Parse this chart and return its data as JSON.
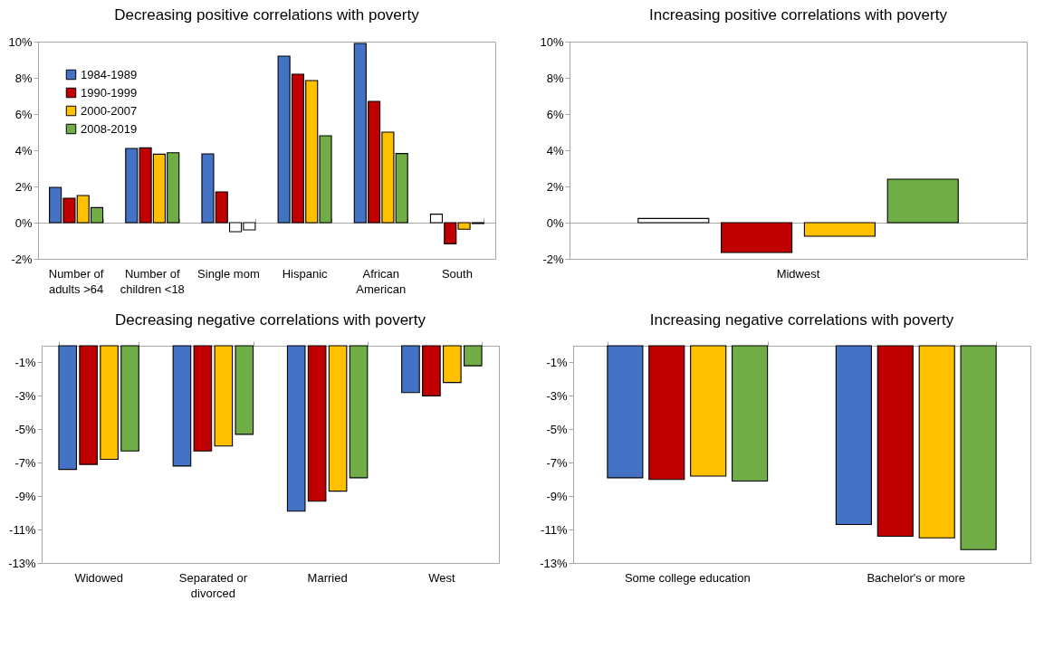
{
  "chart_data": [
    {
      "type": "bar",
      "title": "Decreasing positive correlations with poverty",
      "categories": [
        "Number of adults >64",
        "Number of children <18",
        "Single mom",
        "Hispanic",
        "African American",
        "South"
      ],
      "legend": "top left",
      "ylim": [
        -2,
        10
      ],
      "yticks": [
        {
          "value": -2,
          "label": "-2%"
        },
        {
          "value": 0,
          "label": "0%"
        },
        {
          "value": 2,
          "label": "2%"
        },
        {
          "value": 4,
          "label": "4%"
        },
        {
          "value": 6,
          "label": "6%"
        },
        {
          "value": 8,
          "label": "8%"
        },
        {
          "value": 10,
          "label": "10%"
        }
      ],
      "series": [
        {
          "name": "1984-1989",
          "color": "#4472c4",
          "colors": [
            "#4472c4",
            "#4472c4",
            "#4472c4",
            "#4472c4",
            "#4472c4",
            "#ffffff"
          ],
          "values": [
            1.95,
            4.1,
            3.8,
            9.2,
            9.9,
            0.47
          ]
        },
        {
          "name": "1990-1999",
          "color": "#c00000",
          "values": [
            1.35,
            4.13,
            1.7,
            8.2,
            6.7,
            -1.17
          ]
        },
        {
          "name": "2000-2007",
          "color": "#ffc000",
          "colors": [
            "#ffc000",
            "#ffc000",
            "#ffffff",
            "#ffc000",
            "#ffc000",
            "#ffc000"
          ],
          "values": [
            1.5,
            3.78,
            -0.5,
            7.85,
            5.0,
            -0.36
          ]
        },
        {
          "name": "2008-2019",
          "color": "#70ad47",
          "colors": [
            "#70ad47",
            "#70ad47",
            "#ffffff",
            "#70ad47",
            "#70ad47",
            "#70ad47"
          ],
          "values": [
            0.83,
            3.86,
            -0.4,
            4.8,
            3.82,
            -0.05
          ]
        }
      ]
    },
    {
      "type": "bar",
      "title": "Increasing positive correlations with poverty",
      "categories": [
        "Midwest"
      ],
      "ylim": [
        -2,
        10
      ],
      "yticks": [
        {
          "value": -2,
          "label": "-2%"
        },
        {
          "value": 0,
          "label": "0%"
        },
        {
          "value": 2,
          "label": "2%"
        },
        {
          "value": 4,
          "label": "4%"
        },
        {
          "value": 6,
          "label": "6%"
        },
        {
          "value": 8,
          "label": "8%"
        },
        {
          "value": 10,
          "label": "10%"
        }
      ],
      "series": [
        {
          "color": "#4472c4",
          "colors": [
            "#ffffff"
          ],
          "values": [
            0.23
          ]
        },
        {
          "color": "#c00000",
          "values": [
            -1.65
          ]
        },
        {
          "color": "#ffc000",
          "values": [
            -0.75
          ]
        },
        {
          "color": "#70ad47",
          "values": [
            2.4
          ]
        }
      ]
    },
    {
      "type": "bar",
      "title": "Decreasing negative correlations with poverty",
      "categories": [
        "Widowed",
        "Separated or divorced",
        "Married",
        "West"
      ],
      "ylim": [
        -13,
        0
      ],
      "yticks": [
        {
          "value": -1,
          "label": "-1%"
        },
        {
          "value": -3,
          "label": "-3%"
        },
        {
          "value": -5,
          "label": "-5%"
        },
        {
          "value": -7,
          "label": "-7%"
        },
        {
          "value": -9,
          "label": "-9%"
        },
        {
          "value": -11,
          "label": "-11%"
        },
        {
          "value": -13,
          "label": "-13%"
        }
      ],
      "series": [
        {
          "color": "#4472c4",
          "values": [
            -7.4,
            -7.2,
            -9.9,
            -2.8
          ]
        },
        {
          "color": "#c00000",
          "values": [
            -7.1,
            -6.3,
            -9.3,
            -3.0
          ]
        },
        {
          "color": "#ffc000",
          "values": [
            -6.8,
            -6.0,
            -8.7,
            -2.2
          ]
        },
        {
          "color": "#70ad47",
          "values": [
            -6.3,
            -5.3,
            -7.9,
            -1.2
          ]
        }
      ]
    },
    {
      "type": "bar",
      "title": "Increasing negative correlations with poverty",
      "categories": [
        "Some college education",
        "Bachelor's or more"
      ],
      "ylim": [
        -13,
        0
      ],
      "yticks": [
        {
          "value": -1,
          "label": "-1%"
        },
        {
          "value": -3,
          "label": "-3%"
        },
        {
          "value": -5,
          "label": "-5%"
        },
        {
          "value": -7,
          "label": "-7%"
        },
        {
          "value": -9,
          "label": "-9%"
        },
        {
          "value": -11,
          "label": "-11%"
        },
        {
          "value": -13,
          "label": "-13%"
        }
      ],
      "series": [
        {
          "color": "#4472c4",
          "values": [
            -7.9,
            -10.7
          ]
        },
        {
          "color": "#c00000",
          "values": [
            -8.0,
            -11.4
          ]
        },
        {
          "color": "#ffc000",
          "values": [
            -7.8,
            -11.5
          ]
        },
        {
          "color": "#70ad47",
          "values": [
            -8.1,
            -12.2
          ]
        }
      ]
    }
  ]
}
